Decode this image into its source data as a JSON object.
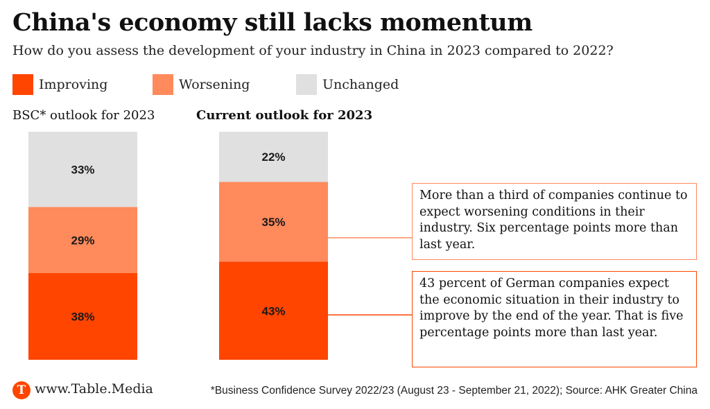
{
  "title": "China's economy still lacks momentum",
  "subtitle": "How do you assess the development of your industry in China in 2023 compared to 2022?",
  "footer": {
    "logo_letter": "T",
    "site": "www.Table.Media",
    "note": "*Business Confidence Survey 2022/23 (August 23 - September 21, 2022); Source: AHK Greater China"
  },
  "colors": {
    "improving": "#ff4500",
    "worsening": "#ff8a5c",
    "unchanged": "#e0e0e0"
  },
  "callouts": [
    {
      "text": "More than a third of companies continue to expect worsening conditions in their industry. Six percentage points more than last year."
    },
    {
      "text": "43 percent of German companies expect the economic situation in their industry to improve by the end of the year. That is five percentage points more than last year."
    }
  ],
  "chart_data": {
    "type": "bar",
    "stacked": true,
    "legend": [
      "Improving",
      "Worsening",
      "Unchanged"
    ],
    "legend_position": "top-left",
    "categories": [
      "BSC* outlook for 2023",
      "Current outlook for 2023"
    ],
    "series": [
      {
        "name": "Improving",
        "values": [
          38,
          43
        ]
      },
      {
        "name": "Worsening",
        "values": [
          29,
          35
        ]
      },
      {
        "name": "Unchanged",
        "values": [
          33,
          22
        ]
      }
    ],
    "data_labels": [
      [
        "38%",
        "29%",
        "33%"
      ],
      [
        "43%",
        "35%",
        "22%"
      ]
    ],
    "ylim": [
      0,
      100
    ],
    "grid": false
  }
}
